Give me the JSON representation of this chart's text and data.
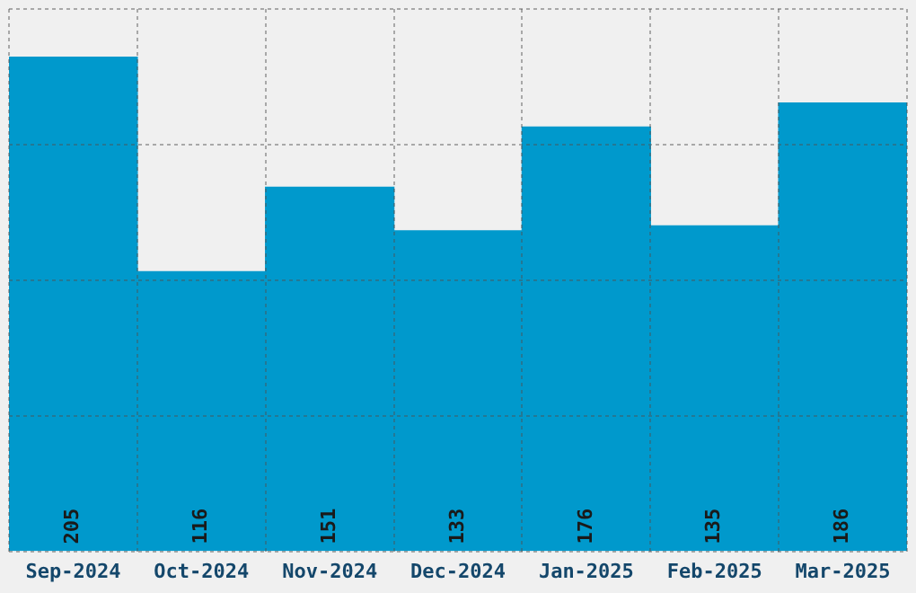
{
  "chart_data": {
    "type": "bar",
    "categories": [
      "Sep-2024",
      "Oct-2024",
      "Nov-2024",
      "Dec-2024",
      "Jan-2025",
      "Feb-2025",
      "Mar-2025"
    ],
    "values": [
      205,
      116,
      151,
      133,
      176,
      135,
      186
    ],
    "color": "#0099cc",
    "ylim": [
      0,
      225
    ],
    "grid": true,
    "data_labels": true,
    "tick_labels": "x"
  }
}
